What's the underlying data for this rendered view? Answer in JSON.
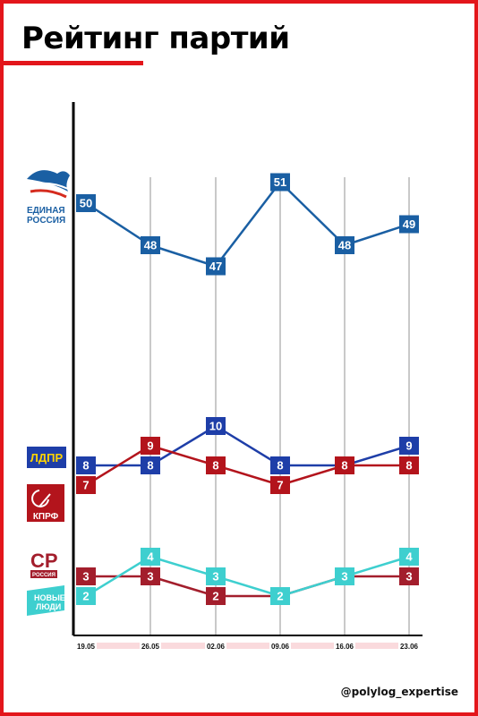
{
  "title": "Рейтинг партий",
  "watermark": "@polylog_expertise",
  "colors": {
    "frame": "#e3161b",
    "edinaya_rossiya": "#1a5fa3",
    "ldpr": "#1e3ea8",
    "kprf": "#b3141c",
    "sr": "#a31e2c",
    "novye_lyudi": "#3ecfcf"
  },
  "party_logos": {
    "edinaya_rossiya": {
      "icon": "bear-icon",
      "line1": "ЕДИНАЯ",
      "line2": "РОССИЯ"
    },
    "ldpr": {
      "text": "ЛДПР"
    },
    "kprf": {
      "icon": "hammer-sickle-icon",
      "text": "КПРФ"
    },
    "sr": {
      "text": "СР",
      "sub": "РОССИЯ"
    },
    "novye_lyudi": {
      "line1": "НОВЫЕ",
      "line2": "ЛЮДИ"
    }
  },
  "chart_data": {
    "type": "line",
    "title": "Рейтинг партий",
    "x": [
      "19.05",
      "26.05",
      "02.06",
      "09.06",
      "16.06",
      "23.06"
    ],
    "series": [
      {
        "key": "edinaya_rossiya",
        "values": [
          50,
          48,
          47,
          51,
          48,
          49
        ]
      },
      {
        "key": "ldpr",
        "values": [
          8,
          8,
          10,
          8,
          8,
          9
        ]
      },
      {
        "key": "kprf",
        "values": [
          7,
          9,
          8,
          7,
          8,
          8
        ]
      },
      {
        "key": "sr",
        "values": [
          3,
          3,
          2,
          2,
          3,
          3
        ]
      },
      {
        "key": "novye_lyudi",
        "values": [
          2,
          4,
          3,
          2,
          3,
          4
        ]
      }
    ],
    "grid": "vertical",
    "legend": "left, party logos"
  }
}
